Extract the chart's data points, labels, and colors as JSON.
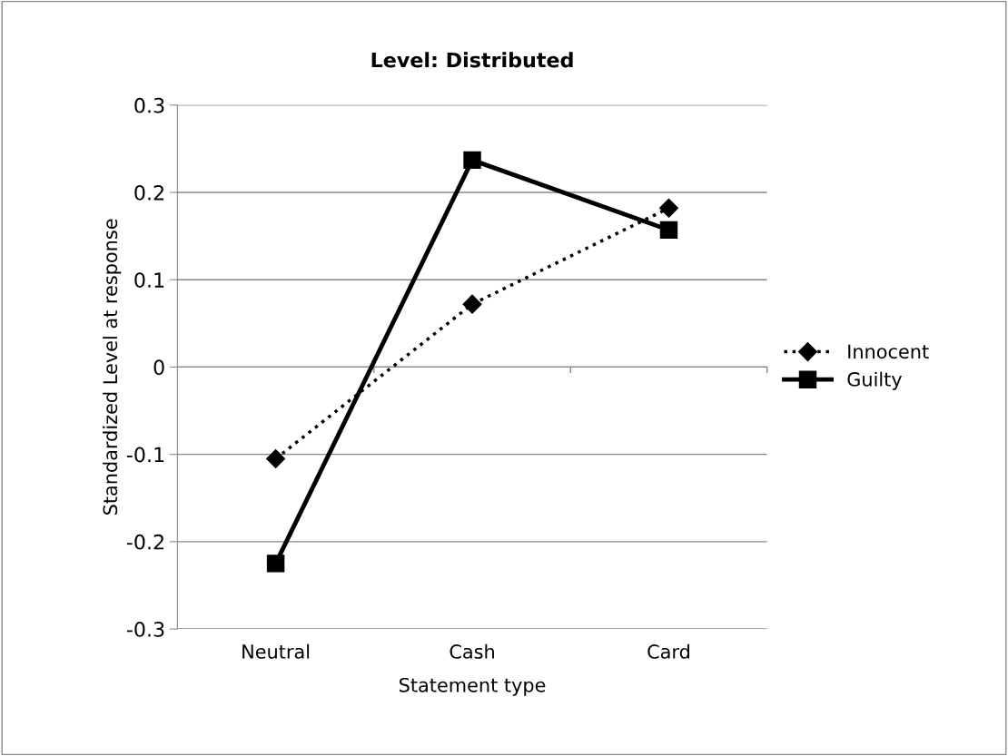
{
  "chart_data": {
    "type": "line",
    "title": "Level: Distributed",
    "xlabel": "Statement type",
    "ylabel": "Standardized Level at response",
    "categories": [
      "Neutral",
      "Cash",
      "Card"
    ],
    "series": [
      {
        "name": "Innocent",
        "color": "#000000",
        "values": [
          -0.105,
          0.072,
          0.182
        ],
        "marker": "diamond",
        "line_style": "dotted"
      },
      {
        "name": "Guilty",
        "color": "#000000",
        "values": [
          -0.225,
          0.237,
          0.157
        ],
        "marker": "square",
        "line_style": "solid"
      }
    ],
    "ylim": [
      -0.3,
      0.3
    ],
    "yticks": [
      -0.3,
      -0.2,
      -0.1,
      0,
      0.1,
      0.2,
      0.3
    ],
    "grid": "y",
    "legend": "right"
  }
}
